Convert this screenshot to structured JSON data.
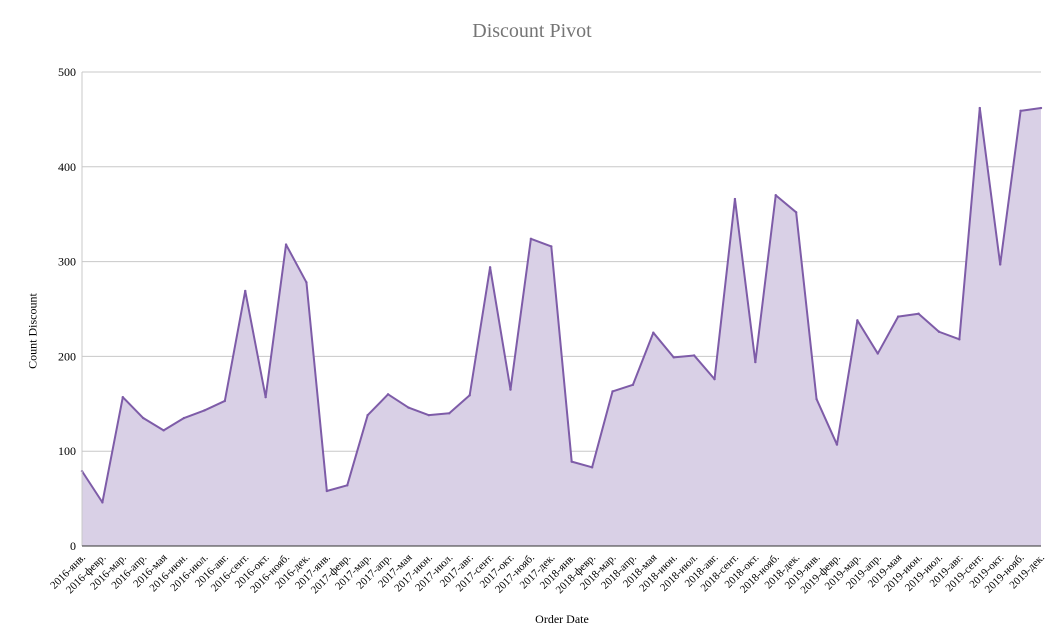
{
  "chart_data": {
    "type": "area",
    "title": "Discount Pivot",
    "xlabel": "Order Date",
    "ylabel": "Count Discount",
    "ylim": [
      0,
      500
    ],
    "yticks": [
      0,
      100,
      200,
      300,
      400,
      500
    ],
    "grid": true,
    "colors": {
      "line": "#7E5CA8",
      "fill": "#D9D0E6",
      "grid": "#C8C8C8",
      "axis": "#333333"
    },
    "categories": [
      "2016-янв.",
      "2016-февр.",
      "2016-мар.",
      "2016-апр.",
      "2016-мая",
      "2016-июн.",
      "2016-июл.",
      "2016-авг.",
      "2016-сент.",
      "2016-окт.",
      "2016-нояб.",
      "2016-дек.",
      "2017-янв.",
      "2017-февр.",
      "2017-мар.",
      "2017-апр.",
      "2017-мая",
      "2017-июн.",
      "2017-июл.",
      "2017-авг.",
      "2017-сент.",
      "2017-окт.",
      "2017-нояб.",
      "2017-дек.",
      "2018-янв.",
      "2018-февр.",
      "2018-мар.",
      "2018-апр.",
      "2018-мая",
      "2018-июн.",
      "2018-июл.",
      "2018-авг.",
      "2018-сент.",
      "2018-окт.",
      "2018-нояб.",
      "2018-дек.",
      "2019-янв.",
      "2019-февр.",
      "2019-мар.",
      "2019-апр.",
      "2019-мая",
      "2019-июн.",
      "2019-июл.",
      "2019-авг.",
      "2019-сент.",
      "2019-окт.",
      "2019-нояб.",
      "2019-дек."
    ],
    "series": [
      {
        "values": [
          79,
          46,
          157,
          135,
          122,
          135,
          143,
          153,
          269,
          157,
          318,
          278,
          58,
          64,
          138,
          160,
          146,
          138,
          140,
          159,
          294,
          165,
          324,
          316,
          89,
          83,
          163,
          170,
          225,
          199,
          201,
          176,
          366,
          194,
          370,
          352,
          155,
          107,
          238,
          203,
          242,
          245,
          226,
          218,
          462,
          297,
          459,
          462
        ]
      }
    ]
  }
}
